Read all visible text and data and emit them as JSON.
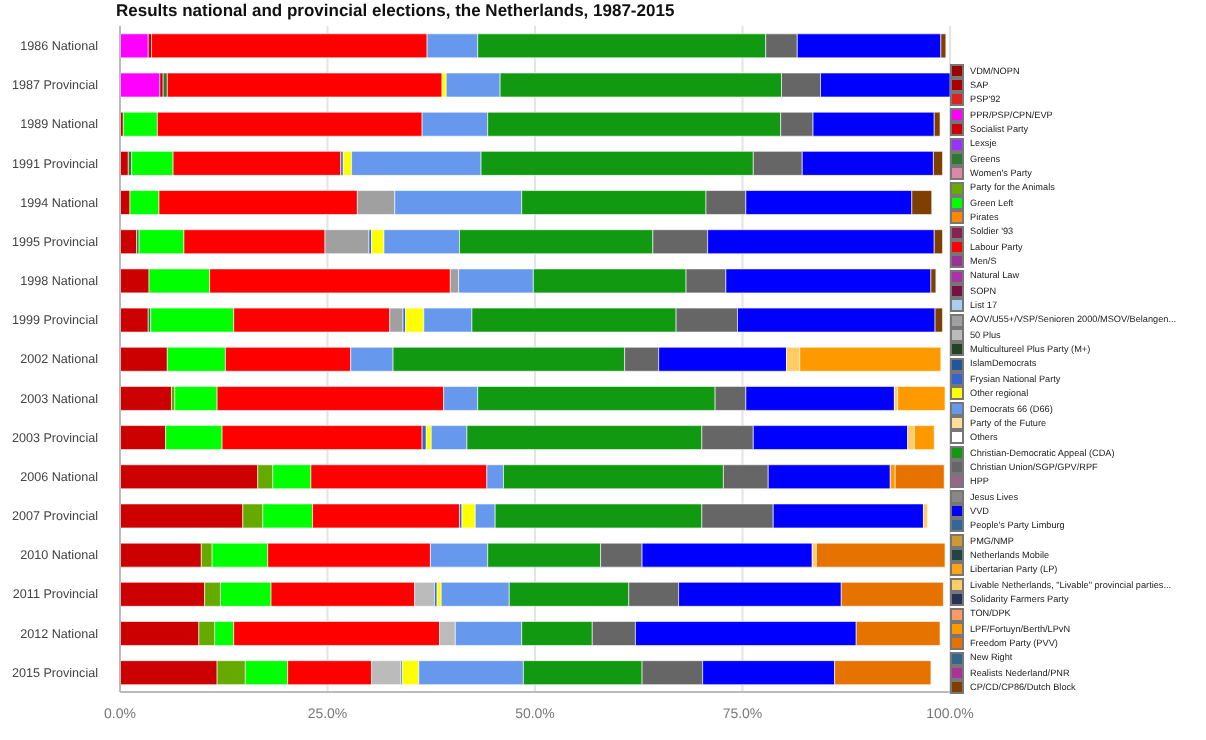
{
  "chart_data": {
    "type": "bar",
    "orientation": "horizontal",
    "stacked": true,
    "title": "Results national and provincial elections, the Netherlands, 1987-2015",
    "categories": [
      "1986 National",
      "1987 Provincial",
      "1989 National",
      "1991 Provincial",
      "1994 National",
      "1995 Provincial",
      "1998 National",
      "1999 Provincial",
      "2002 National",
      "2003 National",
      "2003 Provincial",
      "2006 National",
      "2007 Provincial",
      "2010 National",
      "2011 Provincial",
      "2012 National",
      "2015 Provincial"
    ],
    "xlim": [
      0,
      100
    ],
    "xticks": [
      {
        "value": 0,
        "label": "0.0%"
      },
      {
        "value": 25,
        "label": "25.0%"
      },
      {
        "value": 50,
        "label": "50.0%"
      },
      {
        "value": 75,
        "label": "75.0%"
      },
      {
        "value": 100,
        "label": "100.0%"
      }
    ],
    "grid": "x",
    "legend": "right",
    "series": [
      {
        "name": "VDM/NOPN",
        "color": "#990000",
        "values": [
          null,
          null,
          null,
          null,
          null,
          null,
          null,
          null,
          null,
          null,
          null,
          null,
          null,
          null,
          null,
          null,
          null
        ]
      },
      {
        "name": "SAP",
        "color": "#aa0000",
        "values": [
          null,
          null,
          null,
          null,
          null,
          null,
          null,
          null,
          null,
          null,
          null,
          null,
          null,
          null,
          null,
          null,
          null
        ]
      },
      {
        "name": "PSP'92",
        "color": "#dd2222",
        "values": [
          null,
          null,
          null,
          null,
          null,
          null,
          null,
          null,
          null,
          null,
          null,
          null,
          null,
          null,
          null,
          null,
          null
        ]
      },
      {
        "name": "PPR/PSP/CPN/EVP",
        "color": "#ff00ff",
        "values": [
          3.4,
          4.8,
          null,
          null,
          null,
          null,
          null,
          null,
          null,
          null,
          null,
          null,
          null,
          null,
          null,
          null,
          null
        ]
      },
      {
        "name": "Socialist Party",
        "color": "#cc0000",
        "values": [
          0.4,
          0.4,
          0.4,
          1.0,
          1.2,
          2.0,
          3.5,
          3.4,
          5.7,
          6.2,
          5.5,
          16.6,
          14.8,
          9.8,
          10.2,
          9.5,
          11.7
        ]
      },
      {
        "name": "Lexsje",
        "color": "#9933ff",
        "values": [
          null,
          null,
          null,
          null,
          null,
          null,
          null,
          null,
          null,
          null,
          null,
          null,
          null,
          null,
          null,
          null,
          null
        ]
      },
      {
        "name": "Greens",
        "color": "#2d7a2d",
        "values": [
          null,
          0.5,
          null,
          0.4,
          null,
          0.3,
          null,
          0.3,
          null,
          null,
          null,
          null,
          null,
          null,
          null,
          null,
          null
        ]
      },
      {
        "name": "Women's Party",
        "color": "#dd88aa",
        "values": [
          null,
          null,
          null,
          null,
          null,
          null,
          null,
          null,
          null,
          null,
          null,
          null,
          null,
          null,
          null,
          null,
          null
        ]
      },
      {
        "name": "Party for the Animals",
        "color": "#66aa00",
        "values": [
          null,
          null,
          null,
          null,
          null,
          null,
          null,
          null,
          null,
          0.4,
          null,
          1.8,
          2.4,
          1.3,
          1.9,
          1.9,
          3.4
        ]
      },
      {
        "name": "Green Left",
        "color": "#00ff00",
        "values": [
          null,
          null,
          4.1,
          5.0,
          3.5,
          5.4,
          7.3,
          10.0,
          7.0,
          5.1,
          6.8,
          4.6,
          6.0,
          6.7,
          6.1,
          2.3,
          5.1
        ]
      },
      {
        "name": "Pirates",
        "color": "#ff8800",
        "values": [
          null,
          null,
          null,
          null,
          null,
          null,
          null,
          null,
          null,
          null,
          null,
          null,
          null,
          null,
          null,
          null,
          null
        ]
      },
      {
        "name": "Soldier '93",
        "color": "#882255",
        "values": [
          null,
          null,
          null,
          null,
          null,
          null,
          null,
          null,
          null,
          null,
          null,
          null,
          null,
          null,
          null,
          null,
          null
        ]
      },
      {
        "name": "Labour Party",
        "color": "#ff0000",
        "values": [
          33.2,
          33.1,
          31.9,
          20.2,
          23.9,
          17.0,
          29.0,
          18.8,
          15.1,
          27.3,
          24.1,
          21.2,
          17.7,
          19.6,
          17.3,
          24.8,
          10.1
        ]
      },
      {
        "name": "Men/S",
        "color": "#993399",
        "values": [
          null,
          null,
          null,
          null,
          null,
          null,
          null,
          null,
          null,
          null,
          null,
          null,
          null,
          null,
          null,
          null,
          null
        ]
      },
      {
        "name": "Natural Law",
        "color": "#aa33aa",
        "values": [
          null,
          null,
          null,
          null,
          null,
          null,
          null,
          null,
          null,
          null,
          null,
          null,
          null,
          null,
          null,
          null,
          null
        ]
      },
      {
        "name": "SOPN",
        "color": "#771144",
        "values": [
          null,
          null,
          null,
          null,
          null,
          null,
          null,
          null,
          null,
          null,
          null,
          null,
          null,
          null,
          null,
          null,
          null
        ]
      },
      {
        "name": "List 17",
        "color": "#aaccee",
        "values": [
          null,
          null,
          null,
          null,
          null,
          null,
          null,
          null,
          null,
          null,
          null,
          null,
          null,
          null,
          null,
          null,
          null
        ]
      },
      {
        "name": "AOV/U55+/VSP/Senioren 2000/MSOV/Belangen...",
        "color": "#a0a0a0",
        "values": [
          null,
          null,
          null,
          null,
          4.5,
          5.3,
          1.0,
          1.6,
          null,
          null,
          null,
          null,
          null,
          null,
          null,
          null,
          null
        ]
      },
      {
        "name": "50 Plus",
        "color": "#bbbbbb",
        "values": [
          null,
          null,
          null,
          null,
          null,
          null,
          null,
          null,
          null,
          null,
          null,
          null,
          null,
          null,
          2.4,
          1.9,
          3.5
        ]
      },
      {
        "name": "Multicultureel Plus Party (M+)",
        "color": "#224422",
        "values": [
          null,
          null,
          null,
          null,
          null,
          null,
          null,
          null,
          null,
          null,
          null,
          null,
          null,
          null,
          null,
          null,
          null
        ]
      },
      {
        "name": "IslamDemocrats",
        "color": "#225599",
        "values": [
          null,
          null,
          null,
          null,
          null,
          null,
          null,
          null,
          null,
          null,
          null,
          null,
          null,
          null,
          null,
          null,
          null
        ]
      },
      {
        "name": "Frysian National Party",
        "color": "#3366cc",
        "values": [
          null,
          null,
          null,
          0.3,
          null,
          0.3,
          null,
          0.3,
          null,
          null,
          0.5,
          null,
          0.3,
          null,
          0.3,
          null,
          0.2
        ]
      },
      {
        "name": "Other regional",
        "color": "#ffff00",
        "values": [
          null,
          0.5,
          null,
          1.0,
          null,
          1.5,
          null,
          2.2,
          null,
          null,
          0.6,
          null,
          1.6,
          null,
          0.5,
          null,
          2.0
        ]
      },
      {
        "name": "Democrats 66 (D66)",
        "color": "#6699ee",
        "values": [
          6.1,
          6.5,
          7.9,
          15.6,
          15.3,
          9.1,
          9.0,
          5.8,
          5.1,
          4.1,
          4.3,
          2.0,
          2.4,
          6.9,
          8.2,
          8.0,
          12.6
        ]
      },
      {
        "name": "Party of the Future",
        "color": "#ffdd99",
        "values": [
          null,
          null,
          null,
          null,
          null,
          null,
          null,
          null,
          null,
          null,
          null,
          null,
          null,
          null,
          null,
          null,
          null
        ]
      },
      {
        "name": "Others",
        "color": "#ffffff",
        "values": [
          null,
          null,
          null,
          null,
          null,
          null,
          null,
          null,
          null,
          null,
          null,
          null,
          null,
          null,
          null,
          null,
          null
        ]
      },
      {
        "name": "Christian-Democratic Appeal (CDA)",
        "color": "#119911",
        "values": [
          34.7,
          33.9,
          35.3,
          32.8,
          22.2,
          23.3,
          18.4,
          24.6,
          27.9,
          28.6,
          28.3,
          26.5,
          24.9,
          13.6,
          14.4,
          8.5,
          14.3
        ]
      },
      {
        "name": "Christian Union/SGP/GPV/RPF",
        "color": "#666666",
        "values": [
          3.8,
          4.7,
          3.9,
          5.9,
          4.8,
          6.6,
          4.8,
          7.4,
          4.1,
          3.7,
          6.2,
          5.4,
          8.6,
          5.0,
          6.0,
          5.2,
          7.3
        ]
      },
      {
        "name": "HPP",
        "color": "#996688",
        "values": [
          null,
          null,
          null,
          null,
          null,
          null,
          null,
          null,
          null,
          null,
          null,
          null,
          null,
          null,
          null,
          null,
          null
        ]
      },
      {
        "name": "Jesus Lives",
        "color": "#888888",
        "values": [
          null,
          null,
          null,
          null,
          null,
          null,
          null,
          null,
          null,
          null,
          null,
          null,
          null,
          null,
          null,
          null,
          null
        ]
      },
      {
        "name": "VVD",
        "color": "#0000ff",
        "values": [
          17.3,
          15.7,
          14.6,
          15.8,
          20.0,
          27.3,
          24.7,
          23.8,
          15.4,
          17.9,
          18.6,
          14.7,
          18.1,
          20.5,
          19.6,
          26.6,
          15.9
        ]
      },
      {
        "name": "People's Party Limburg",
        "color": "#336699",
        "values": [
          null,
          null,
          null,
          null,
          null,
          null,
          null,
          null,
          null,
          null,
          null,
          null,
          null,
          null,
          null,
          null,
          null
        ]
      },
      {
        "name": "PMG/NMP",
        "color": "#cc9933",
        "values": [
          null,
          null,
          null,
          null,
          null,
          null,
          null,
          null,
          null,
          null,
          null,
          null,
          null,
          null,
          null,
          null,
          null
        ]
      },
      {
        "name": "Netherlands Mobile",
        "color": "#224444",
        "values": [
          null,
          null,
          null,
          null,
          null,
          null,
          null,
          null,
          null,
          null,
          null,
          null,
          null,
          null,
          null,
          null,
          null
        ]
      },
      {
        "name": "Libertarian Party (LP)",
        "color": "#ffa31a",
        "values": [
          null,
          null,
          null,
          null,
          null,
          null,
          null,
          null,
          null,
          null,
          null,
          null,
          null,
          null,
          null,
          null,
          null
        ]
      },
      {
        "name": "Livable Netherlands, \"Livable\" provincial parties...",
        "color": "#ffcc66",
        "values": [
          null,
          null,
          null,
          null,
          null,
          null,
          null,
          null,
          1.6,
          0.4,
          0.8,
          null,
          0.5,
          0.5,
          null,
          null,
          null
        ]
      },
      {
        "name": "Solidarity Farmers Party",
        "color": "#223355",
        "values": [
          null,
          null,
          null,
          null,
          null,
          null,
          null,
          null,
          null,
          null,
          null,
          null,
          null,
          null,
          null,
          null,
          null
        ]
      },
      {
        "name": "TON/DPK",
        "color": "#ff9966",
        "values": [
          null,
          null,
          null,
          null,
          null,
          null,
          null,
          null,
          null,
          null,
          null,
          null,
          null,
          null,
          null,
          null,
          null
        ]
      },
      {
        "name": "LPF/Fortuyn/Berth/LPvN",
        "color": "#ff9900",
        "values": [
          null,
          null,
          null,
          null,
          null,
          null,
          null,
          null,
          17.0,
          5.7,
          2.4,
          0.6,
          null,
          null,
          null,
          null,
          null
        ]
      },
      {
        "name": "Freedom Party (PVV)",
        "color": "#e67300",
        "values": [
          null,
          null,
          null,
          null,
          null,
          null,
          null,
          null,
          null,
          null,
          null,
          5.9,
          null,
          15.5,
          12.3,
          10.1,
          11.6
        ]
      },
      {
        "name": "New Right",
        "color": "#336688",
        "values": [
          null,
          null,
          null,
          null,
          null,
          null,
          null,
          null,
          null,
          null,
          null,
          null,
          null,
          null,
          null,
          null,
          null
        ]
      },
      {
        "name": "Realists Nederland/PNR",
        "color": "#aa3399",
        "values": [
          null,
          null,
          null,
          null,
          null,
          null,
          null,
          null,
          null,
          null,
          null,
          null,
          null,
          null,
          null,
          null,
          null
        ]
      },
      {
        "name": "CP/CD/CP86/Dutch Block",
        "color": "#7f3f00",
        "values": [
          0.6,
          null,
          0.7,
          1.1,
          2.4,
          1.0,
          0.6,
          0.9,
          null,
          null,
          null,
          null,
          null,
          null,
          null,
          null,
          null
        ]
      }
    ]
  }
}
